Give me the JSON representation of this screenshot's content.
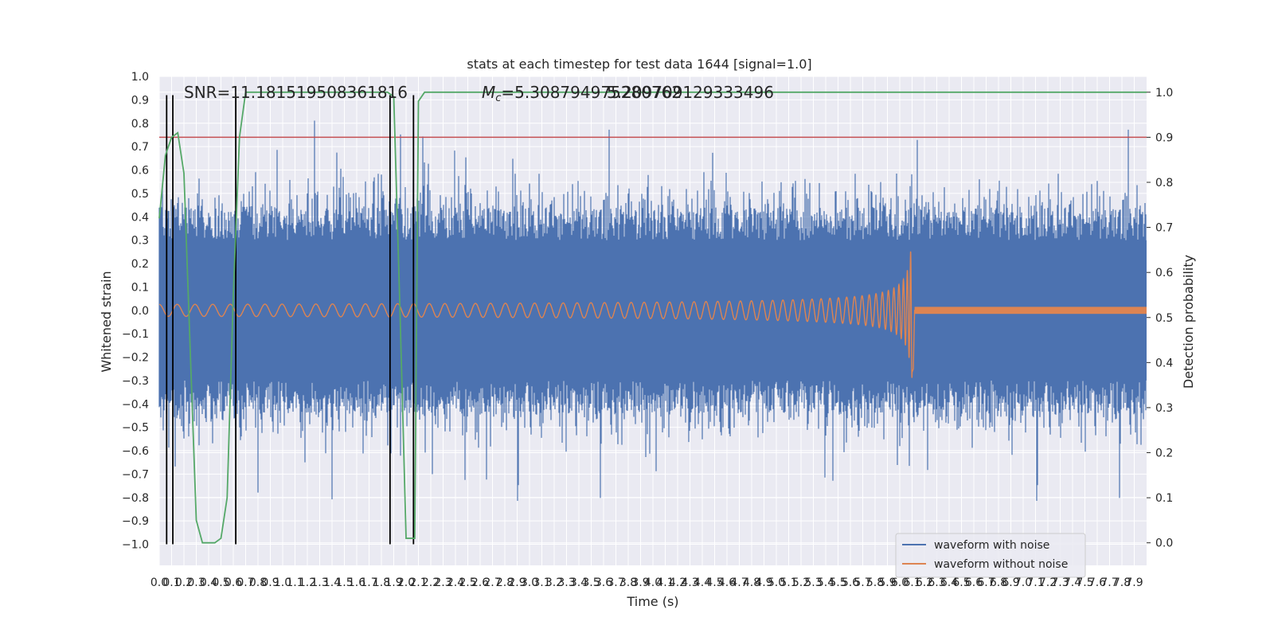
{
  "chart_data": {
    "type": "line",
    "title": "stats at each timestep for test data 1644 [signal=1.0]",
    "xlabel": "Time (s)",
    "ylabel_left": "Whitened strain",
    "ylabel_right": "Detection probability",
    "xlim": [
      0.0,
      8.0
    ],
    "ylim_left": [
      -1.09,
      1.0
    ],
    "ylim_right": [
      -0.05,
      1.035
    ],
    "x_ticks": [
      "0.0",
      "0.1",
      "0.2",
      "0.3",
      "0.4",
      "0.5",
      "0.6",
      "0.7",
      "0.8",
      "0.9",
      "1.0",
      "1.1",
      "1.2",
      "1.3",
      "1.4",
      "1.5",
      "1.6",
      "1.7",
      "1.8",
      "1.9",
      "2.0",
      "2.1",
      "2.2",
      "2.3",
      "2.4",
      "2.5",
      "2.6",
      "2.7",
      "2.8",
      "2.9",
      "3.0",
      "3.1",
      "3.2",
      "3.3",
      "3.4",
      "3.5",
      "3.6",
      "3.7",
      "3.8",
      "3.9",
      "4.0",
      "4.1",
      "4.2",
      "4.3",
      "4.4",
      "4.5",
      "4.6",
      "4.7",
      "4.8",
      "4.9",
      "5.0",
      "5.1",
      "5.2",
      "5.3",
      "5.4",
      "5.5",
      "5.6",
      "5.7",
      "5.8",
      "5.9",
      "6.0",
      "6.1",
      "6.2",
      "6.3",
      "6.4",
      "6.5",
      "6.6",
      "6.7",
      "6.8",
      "6.9",
      "7.0",
      "7.1",
      "7.2",
      "7.3",
      "7.4",
      "7.5",
      "7.6",
      "7.7",
      "7.8",
      "7.9"
    ],
    "y_ticks_left": [
      "1.0",
      "0.9",
      "0.8",
      "0.7",
      "0.6",
      "0.5",
      "0.4",
      "0.3",
      "0.2",
      "0.1",
      "0.0",
      "-0.1",
      "-0.2",
      "-0.3",
      "-0.4",
      "-0.5",
      "-0.6",
      "-0.7",
      "-0.8",
      "-0.9",
      "-1.0"
    ],
    "y_ticks_right": [
      "1.0",
      "0.9",
      "0.8",
      "0.7",
      "0.6",
      "0.5",
      "0.4",
      "0.3",
      "0.2",
      "0.1",
      "0.0"
    ],
    "annotations": {
      "snr": "SNR=11.181519508361816",
      "mc_symbol": "M",
      "mc_sub": "c",
      "mc_value": "=5.308794975280762",
      "overlap": "5.209709129333496"
    },
    "threshold_probability": 0.9,
    "vertical_markers_x": [
      0.06,
      0.11,
      0.62,
      1.87,
      2.06
    ],
    "chirp_merger_x": 6.1,
    "series": [
      {
        "name": "waveform with noise",
        "color": "#4c72b0",
        "noise_amplitude": 0.4
      },
      {
        "name": "waveform without noise",
        "color": "#dd8452",
        "peak_amplitude": 0.29
      },
      {
        "color": "#55a868",
        "x": [
          0.0,
          0.05,
          0.1,
          0.15,
          0.2,
          0.3,
          0.35,
          0.4,
          0.45,
          0.5,
          0.55,
          0.6,
          0.65,
          0.7,
          1.7,
          1.85,
          1.9,
          1.95,
          2.0,
          2.05,
          2.07,
          2.1,
          2.15,
          8.0
        ],
        "y": [
          0.72,
          0.86,
          0.9,
          0.91,
          0.82,
          0.05,
          0.0,
          0.0,
          0.0,
          0.01,
          0.1,
          0.55,
          0.9,
          1.0,
          1.0,
          1.0,
          0.99,
          0.52,
          0.01,
          0.01,
          0.01,
          0.98,
          1.0,
          1.0
        ]
      },
      {
        "color": "#c44e52",
        "y_right_const": 0.9
      }
    ],
    "legend": {
      "position": "lower-right",
      "entries": [
        "waveform with noise",
        "waveform without noise"
      ]
    },
    "grid": true
  }
}
